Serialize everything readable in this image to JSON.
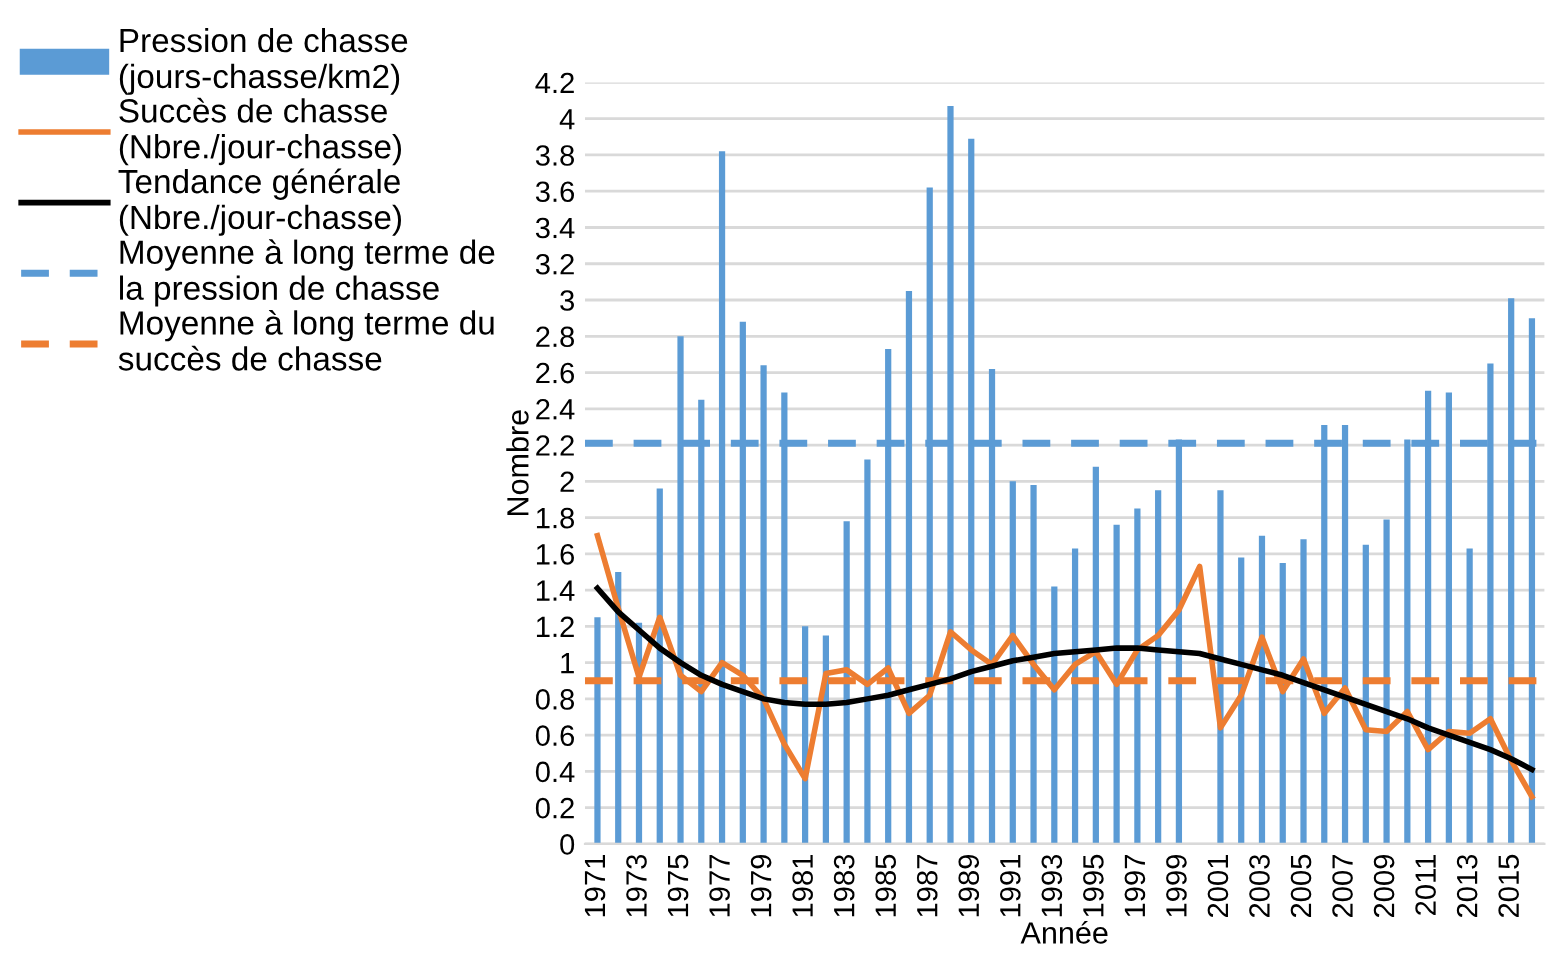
{
  "chart_data": {
    "type": "bar",
    "xlabel": "Année",
    "ylabel": "Nombre",
    "categories": [
      "1971",
      null,
      "1973",
      null,
      "1975",
      null,
      "1977",
      null,
      "1979",
      null,
      "1981",
      null,
      "1983",
      null,
      "1985",
      null,
      "1987",
      null,
      "1989",
      null,
      "1991",
      null,
      "1993",
      null,
      "1995",
      null,
      "1997",
      null,
      "1999",
      null,
      "2001",
      null,
      "2003",
      null,
      "2005",
      null,
      "2007",
      null,
      "2009",
      null,
      "2011",
      null,
      "2013",
      null,
      "2015",
      null
    ],
    "series": [
      {
        "name": "Pression de chasse (jours-chasse/km2)",
        "color": "#5b9bd5",
        "values": [
          1.25,
          1.5,
          1.22,
          1.96,
          2.8,
          2.45,
          3.82,
          2.88,
          2.64,
          2.49,
          1.2,
          1.15,
          1.78,
          2.12,
          2.73,
          3.05,
          3.62,
          4.07,
          3.89,
          2.62,
          2.0,
          1.98,
          1.42,
          1.63,
          2.08,
          1.76,
          1.85,
          1.95,
          2.23,
          null,
          1.95,
          1.58,
          1.7,
          1.55,
          1.68,
          2.31,
          2.31,
          1.65,
          1.79,
          2.23,
          2.5,
          2.49,
          1.63,
          2.65,
          3.01,
          2.9
        ]
      },
      {
        "name": "Succès de chasse (Nbre./jour-chasse)",
        "type": "line",
        "color": "#ed7d31",
        "values": [
          1.7,
          1.3,
          0.92,
          1.25,
          0.93,
          0.84,
          1.0,
          0.93,
          0.8,
          0.55,
          0.36,
          0.94,
          0.96,
          0.88,
          0.97,
          0.72,
          0.82,
          1.17,
          1.07,
          0.99,
          1.15,
          0.99,
          0.85,
          0.99,
          1.06,
          0.88,
          1.07,
          1.15,
          1.29,
          1.53,
          0.64,
          0.82,
          1.14,
          0.84,
          1.02,
          0.72,
          0.86,
          0.63,
          0.62,
          0.73,
          0.52,
          0.62,
          0.61,
          0.69,
          0.46,
          0.26
        ]
      },
      {
        "name": "Tendance générale (Nbre./jour-chasse)",
        "type": "line",
        "color": "#000000",
        "values": [
          1.41,
          1.28,
          1.18,
          1.08,
          1.0,
          0.93,
          0.88,
          0.84,
          0.8,
          0.78,
          0.77,
          0.77,
          0.78,
          0.8,
          0.82,
          0.85,
          0.88,
          0.91,
          0.95,
          0.98,
          1.01,
          1.03,
          1.05,
          1.06,
          1.07,
          1.08,
          1.08,
          1.07,
          1.06,
          1.05,
          1.02,
          0.99,
          0.96,
          0.93,
          0.89,
          0.85,
          0.81,
          0.77,
          0.73,
          0.69,
          0.64,
          0.6,
          0.56,
          0.52,
          0.47,
          0.41
        ]
      }
    ],
    "ref_lines": [
      {
        "axis": "y",
        "value": 2.21,
        "label": "Moyenne à long terme de la pression de chasse",
        "color": "#5b9bd5",
        "line_style": "dashed"
      },
      {
        "axis": "y",
        "value": 0.9,
        "label": "Moyenne à long terme du succès de chasse",
        "color": "#ed7d31",
        "line_style": "dashed"
      }
    ],
    "ylim": [
      0,
      4.2
    ],
    "yticks": [
      0,
      0.2,
      0.4,
      0.6,
      0.8,
      1,
      1.2,
      1.4,
      1.6,
      1.8,
      2,
      2.2,
      2.4,
      2.6,
      2.8,
      3,
      3.2,
      3.4,
      3.6,
      3.8,
      4,
      4.2
    ],
    "grid": "y",
    "legend": "left"
  }
}
